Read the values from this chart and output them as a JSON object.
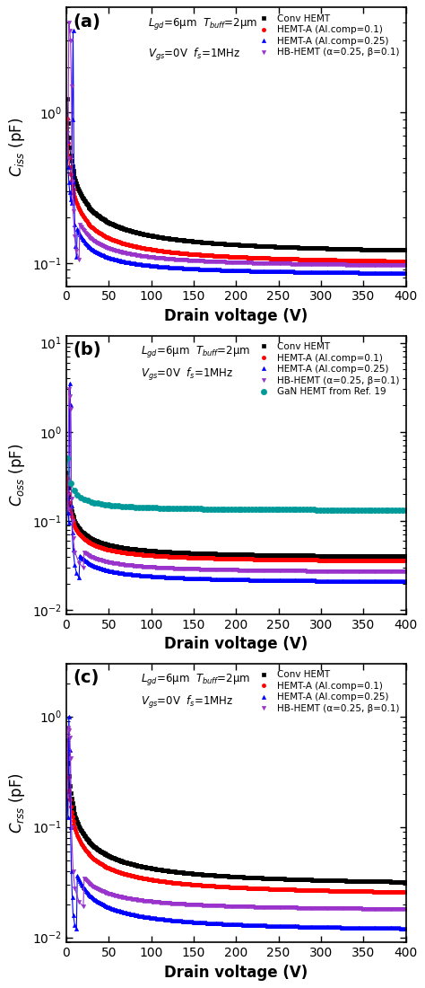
{
  "legend_labels": {
    "conv": "Conv HEMT",
    "hemta01": "HEMT-A (Al.comp=0.1)",
    "hemta025": "HEMT-A (Al.comp=0.25)",
    "hbhemt": "HB-HEMT (α=0.25, β=0.1)",
    "gan": "GaN HEMT from Ref. 19"
  },
  "colors": {
    "conv": "#000000",
    "hemta01": "#ff0000",
    "hemta025": "#0000ff",
    "hbhemt": "#9933cc",
    "gan": "#009999"
  },
  "markers": {
    "conv": "s",
    "hemta01": "o",
    "hemta025": "^",
    "hbhemt": "v",
    "gan": "o"
  },
  "xlabel": "Drain voltage (V)"
}
